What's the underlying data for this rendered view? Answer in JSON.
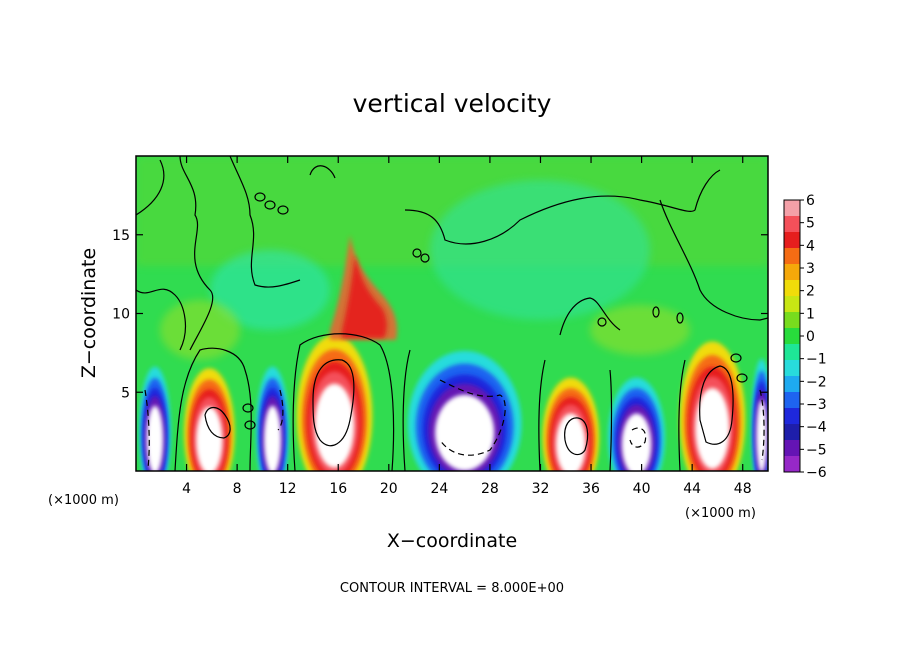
{
  "chart_data": {
    "type": "heatmap",
    "title": "vertical velocity",
    "xlabel": "X−coordinate",
    "ylabel": "Z−coordinate",
    "x_unit_left": "(×1000 m)",
    "x_unit_right": "(×1000 m)",
    "footnote": "CONTOUR INTERVAL = 8.000E+00",
    "xlim": [
      0,
      50
    ],
    "ylim": [
      0,
      20
    ],
    "x_ticks": [
      4,
      8,
      12,
      16,
      20,
      24,
      28,
      32,
      36,
      40,
      44,
      48
    ],
    "x_tick_labels": [
      "4",
      "8",
      "12",
      "16",
      "20",
      "24",
      "28",
      "32",
      "36",
      "40",
      "44",
      "48"
    ],
    "y_ticks": [
      5,
      10,
      15
    ],
    "y_tick_labels": [
      "5",
      "10",
      "15"
    ],
    "colorbar": {
      "min": -6,
      "max": 6,
      "tick_labels": [
        "6",
        "5",
        "4",
        "3",
        "2",
        "1",
        "0",
        "−1",
        "−2",
        "−3",
        "−4",
        "−5",
        "−6"
      ],
      "colors": [
        "#f4a0a8",
        "#f4505a",
        "#e61e1e",
        "#f56c14",
        "#f5a80a",
        "#f0dc0a",
        "#c8e614",
        "#78dc1e",
        "#28dc3c",
        "#1ee696",
        "#28dcdc",
        "#1eaaf0",
        "#1e64f0",
        "#1e28dc",
        "#1e1eaa",
        "#6414b4",
        "#9628c8"
      ]
    },
    "cells": [
      {
        "x": 1.5,
        "w": 2.5,
        "z": 0,
        "h": 6.5,
        "value": -6
      },
      {
        "x": 5.8,
        "w": 4.0,
        "z": 0,
        "h": 6.4,
        "value": 6
      },
      {
        "x": 10.8,
        "w": 2.6,
        "z": 0,
        "h": 6.5,
        "value": -6
      },
      {
        "x": 15.7,
        "w": 6.0,
        "z": 0,
        "h": 8.5,
        "value": 6
      },
      {
        "x": 26.0,
        "w": 9.0,
        "z": 0,
        "h": 7.5,
        "value": -6
      },
      {
        "x": 34.4,
        "w": 4.5,
        "z": 0,
        "h": 5.8,
        "value": 6
      },
      {
        "x": 39.6,
        "w": 4.5,
        "z": 0,
        "h": 5.8,
        "value": -6
      },
      {
        "x": 45.6,
        "w": 5.2,
        "z": 0,
        "h": 8.1,
        "value": 6
      },
      {
        "x": 49.5,
        "w": 1.6,
        "z": 0,
        "h": 7.0,
        "value": -6
      }
    ]
  }
}
